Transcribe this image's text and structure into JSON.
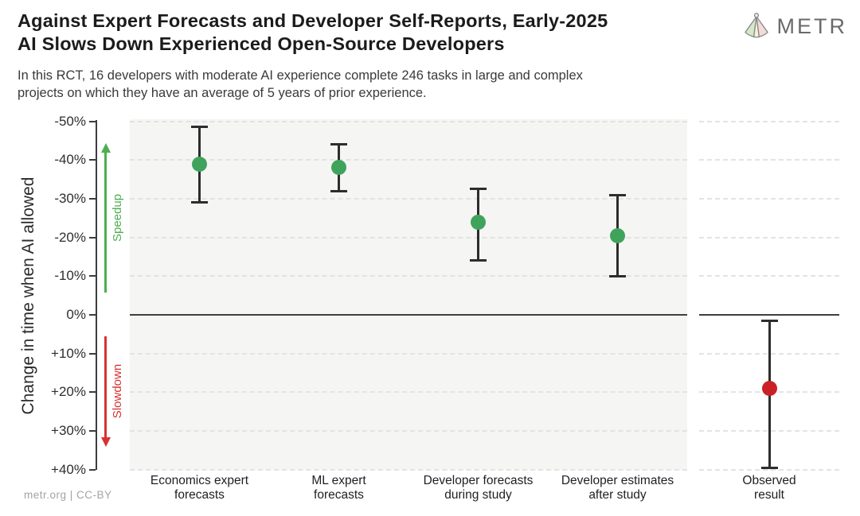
{
  "header": {
    "title_lines": [
      "Against Expert Forecasts and Developer Self-Reports, Early-2025",
      "AI Slows Down Experienced Open-Source Developers"
    ],
    "subtitle_lines": [
      "In this RCT, 16 developers with moderate AI experience complete 246 tasks in large and complex",
      "projects on which they have an average of 5 years of prior experience."
    ],
    "logo_text": "METR"
  },
  "footer": {
    "credit": "metr.org  |  CC-BY"
  },
  "colors": {
    "point_green": "#3fa35c",
    "point_red": "#c92126",
    "arrow_green": "#4caf50",
    "arrow_red": "#d63230",
    "error_bar": "#2d2d2d",
    "panel_bg": "#f5f5f4",
    "gridline": "#e3e3e3",
    "axis": "#3c3c3c",
    "logo_gray": "#6a6a6a"
  },
  "chart_data": {
    "type": "scatter",
    "title": "Against Expert Forecasts and Developer Self-Reports, Early-2025 AI Slows Down Experienced Open-Source Developers",
    "subtitle": "In this RCT, 16 developers with moderate AI experience complete 246 tasks in large and complex projects on which they have an average of 5 years of prior experience.",
    "ylabel": "Change in time when AI allowed",
    "units": "percent change in completion time",
    "ylim_top_to_bottom": [
      -50,
      40
    ],
    "grid": true,
    "zero_line": 0,
    "yticks": [
      {
        "value": -50,
        "label": "-50%"
      },
      {
        "value": -40,
        "label": "-40%"
      },
      {
        "value": -30,
        "label": "-30%"
      },
      {
        "value": -20,
        "label": "-20%"
      },
      {
        "value": -10,
        "label": "-10%"
      },
      {
        "value": 0,
        "label": "0%"
      },
      {
        "value": 10,
        "label": "+10%"
      },
      {
        "value": 20,
        "label": "+20%"
      },
      {
        "value": 30,
        "label": "+30%"
      },
      {
        "value": 40,
        "label": "+40%"
      }
    ],
    "annotations": [
      {
        "text": "Speedup",
        "color": "#4caf50",
        "direction": "up",
        "span_pct": [
          -44.4,
          -5.7
        ]
      },
      {
        "text": "Slowdown",
        "color": "#d63230",
        "direction": "down",
        "span_pct": [
          5.5,
          34.1
        ]
      }
    ],
    "points": [
      {
        "category": "Economics expert forecasts",
        "category_lines": [
          "Economics expert",
          "forecasts"
        ],
        "value": -39,
        "ci": [
          -48.5,
          -29
        ],
        "color": "#3fa35c",
        "panel": "main"
      },
      {
        "category": "ML expert forecasts",
        "category_lines": [
          "ML expert",
          "forecasts"
        ],
        "value": -38,
        "ci": [
          -44,
          -32
        ],
        "color": "#3fa35c",
        "panel": "main"
      },
      {
        "category": "Developer forecasts during study",
        "category_lines": [
          "Developer forecasts",
          "during study"
        ],
        "value": -24,
        "ci": [
          -32.5,
          -14
        ],
        "color": "#3fa35c",
        "panel": "main"
      },
      {
        "category": "Developer estimates after study",
        "category_lines": [
          "Developer estimates",
          "after study"
        ],
        "value": -20.5,
        "ci": [
          -31,
          -10
        ],
        "color": "#3fa35c",
        "panel": "main"
      },
      {
        "category": "Observed result",
        "category_lines": [
          "Observed",
          "result"
        ],
        "value": 19,
        "ci": [
          1.5,
          39.5
        ],
        "color": "#c92126",
        "panel": "observed"
      }
    ]
  }
}
